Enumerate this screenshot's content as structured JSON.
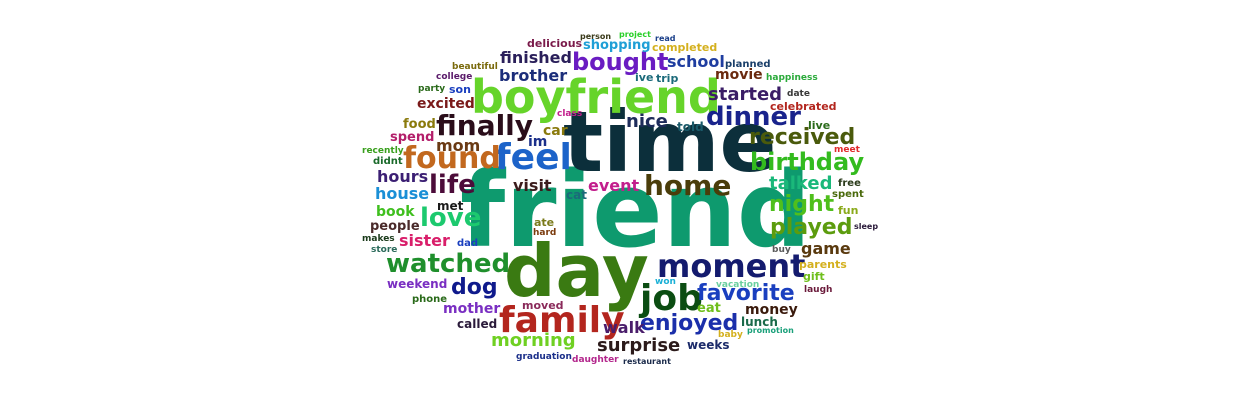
{
  "word_cloud": {
    "words": [
      {
        "text": "friend",
        "color": "#0e9a6e"
      },
      {
        "text": "time",
        "color": "#0c2f3b"
      },
      {
        "text": "day",
        "color": "#3a7a12"
      },
      {
        "text": "boyfriend",
        "color": "#66d42a"
      },
      {
        "text": "family",
        "color": "#b3261e"
      },
      {
        "text": "moment",
        "color": "#141b6e"
      },
      {
        "text": "feel",
        "color": "#1c63c9"
      },
      {
        "text": "found",
        "color": "#c2681e"
      },
      {
        "text": "job",
        "color": "#0b4d12"
      },
      {
        "text": "finally",
        "color": "#2a0d1a"
      },
      {
        "text": "home",
        "color": "#4a3d0a"
      },
      {
        "text": "dinner",
        "color": "#19238c"
      },
      {
        "text": "watched",
        "color": "#1f8f2c"
      },
      {
        "text": "bought",
        "color": "#6a1cc2"
      },
      {
        "text": "life",
        "color": "#4c0c3a"
      },
      {
        "text": "favorite",
        "color": "#1a3fbf"
      },
      {
        "text": "enjoyed",
        "color": "#1b2faa"
      },
      {
        "text": "love",
        "color": "#1cc96e"
      },
      {
        "text": "birthday",
        "color": "#33bb1e"
      },
      {
        "text": "received",
        "color": "#4a5a0c"
      },
      {
        "text": "played",
        "color": "#5c9c0e"
      },
      {
        "text": "night",
        "color": "#4fbf1c"
      },
      {
        "text": "dog",
        "color": "#0f1a8c"
      },
      {
        "text": "morning",
        "color": "#6fd022"
      },
      {
        "text": "surprise",
        "color": "#2b1a1a"
      },
      {
        "text": "started",
        "color": "#3a1d66"
      },
      {
        "text": "nice",
        "color": "#1d2b5a"
      },
      {
        "text": "talked",
        "color": "#1ab87a"
      },
      {
        "text": "finished",
        "color": "#2a1f5a"
      },
      {
        "text": "school",
        "color": "#1f3da0"
      },
      {
        "text": "brother",
        "color": "#1b2d7a"
      },
      {
        "text": "hours",
        "color": "#3b1f73"
      },
      {
        "text": "house",
        "color": "#1a8fd6"
      },
      {
        "text": "sister",
        "color": "#d91e6a"
      },
      {
        "text": "mom",
        "color": "#6a3a14"
      },
      {
        "text": "visit",
        "color": "#3b1c1c"
      },
      {
        "text": "event",
        "color": "#c21e8c"
      },
      {
        "text": "game",
        "color": "#5a3a0f"
      },
      {
        "text": "walk",
        "color": "#4a1d6b"
      },
      {
        "text": "mother",
        "color": "#7a2fc2"
      },
      {
        "text": "movie",
        "color": "#6a2a0f"
      },
      {
        "text": "excited",
        "color": "#7a1a1a"
      },
      {
        "text": "money",
        "color": "#3a1a0c"
      },
      {
        "text": "book",
        "color": "#3fbf1e"
      },
      {
        "text": "car",
        "color": "#8a7a0c"
      },
      {
        "text": "im",
        "color": "#1b2f8a"
      },
      {
        "text": "shopping",
        "color": "#1f9fd6"
      },
      {
        "text": "spend",
        "color": "#b31e6a"
      },
      {
        "text": "food",
        "color": "#8a7a0c"
      },
      {
        "text": "weekend",
        "color": "#7a2fc2"
      },
      {
        "text": "people",
        "color": "#4a2a2a"
      },
      {
        "text": "eat",
        "color": "#6fbf1c"
      },
      {
        "text": "lunch",
        "color": "#1b6a4a"
      },
      {
        "text": "told",
        "color": "#1a5a6a"
      },
      {
        "text": "weeks",
        "color": "#1c2b6a"
      },
      {
        "text": "called",
        "color": "#2a1a3a"
      },
      {
        "text": "met",
        "color": "#1a1a1a"
      },
      {
        "text": "son",
        "color": "#1a3fbf"
      },
      {
        "text": "trip",
        "color": "#1b6a7a"
      },
      {
        "text": "ive",
        "color": "#1b6a7a"
      },
      {
        "text": "completed",
        "color": "#d4b01e"
      },
      {
        "text": "delicious",
        "color": "#7a1a4a"
      },
      {
        "text": "live",
        "color": "#2a6a1a"
      },
      {
        "text": "celebrated",
        "color": "#b3261e"
      },
      {
        "text": "cat",
        "color": "#1b6a7a"
      },
      {
        "text": "ate",
        "color": "#7a7a1a"
      },
      {
        "text": "moved",
        "color": "#8a2a5a"
      },
      {
        "text": "phone",
        "color": "#2a6a1a"
      },
      {
        "text": "gift",
        "color": "#6fbf1c"
      },
      {
        "text": "parents",
        "color": "#d4b01e"
      },
      {
        "text": "fun",
        "color": "#8aaa1a"
      },
      {
        "text": "spent",
        "color": "#4a6a0c"
      },
      {
        "text": "free",
        "color": "#2a3a1a"
      },
      {
        "text": "didnt",
        "color": "#1a6a2a"
      },
      {
        "text": "recently",
        "color": "#3aa01e"
      },
      {
        "text": "party",
        "color": "#2a6a1a"
      },
      {
        "text": "college",
        "color": "#5a1a6a"
      },
      {
        "text": "beautiful",
        "color": "#7a6a0c"
      },
      {
        "text": "planned",
        "color": "#1a3f6a"
      },
      {
        "text": "happiness",
        "color": "#2aaa3a"
      },
      {
        "text": "date",
        "color": "#3a3a3a"
      },
      {
        "text": "class",
        "color": "#c21e8c"
      },
      {
        "text": "hard",
        "color": "#7a3a0c"
      },
      {
        "text": "dad",
        "color": "#1a3fbf"
      },
      {
        "text": "makes",
        "color": "#1a3a1a"
      },
      {
        "text": "store",
        "color": "#2a6a5a"
      },
      {
        "text": "buy",
        "color": "#5a5a5a"
      },
      {
        "text": "laugh",
        "color": "#6a1a3a"
      },
      {
        "text": "meet",
        "color": "#e02a2a"
      },
      {
        "text": "sleep",
        "color": "#2a1a3a"
      },
      {
        "text": "won",
        "color": "#1ab0d6"
      },
      {
        "text": "vacation",
        "color": "#6ad0a0"
      },
      {
        "text": "baby",
        "color": "#d4b01e"
      },
      {
        "text": "promotion",
        "color": "#1aa07a"
      },
      {
        "text": "graduation",
        "color": "#1b2f8a"
      },
      {
        "text": "daughter",
        "color": "#b3268c"
      },
      {
        "text": "restaurant",
        "color": "#1a2a4a"
      },
      {
        "text": "person",
        "color": "#3a3a1a"
      },
      {
        "text": "project",
        "color": "#2ad02a"
      },
      {
        "text": "read",
        "color": "#1a3f8a"
      }
    ]
  }
}
